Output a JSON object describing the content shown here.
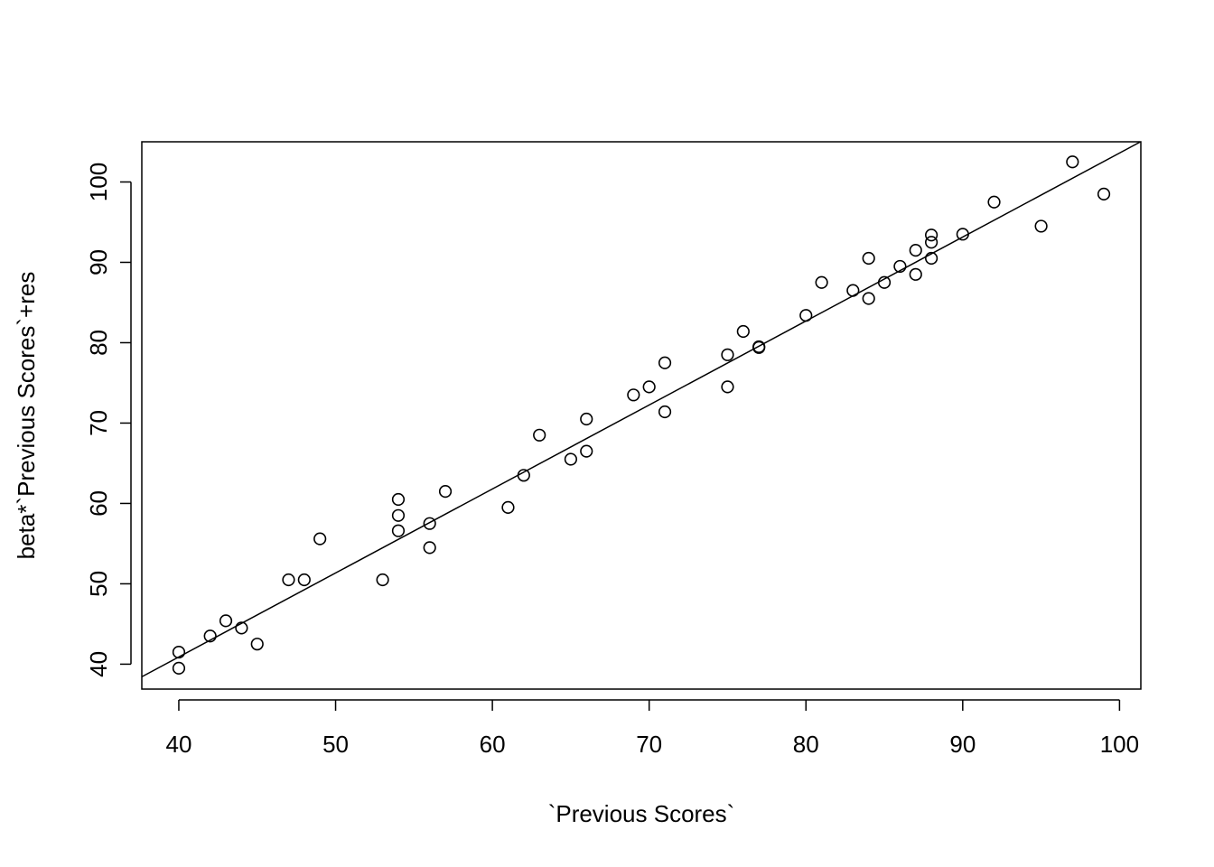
{
  "chart_data": {
    "type": "scatter",
    "title": "",
    "xlabel": "`Previous Scores`",
    "ylabel": "beta*`Previous Scores`+res",
    "xlim": [
      37.64,
      101.36
    ],
    "ylim": [
      36.9,
      105
    ],
    "x_ticks": [
      40,
      50,
      60,
      70,
      80,
      90,
      100
    ],
    "y_ticks": [
      40,
      50,
      60,
      70,
      80,
      90,
      100
    ],
    "grid": false,
    "legend": "none",
    "point_style": "open-circle",
    "points": [
      {
        "x": 40,
        "y": 41.5
      },
      {
        "x": 40,
        "y": 39.5
      },
      {
        "x": 42,
        "y": 43.5
      },
      {
        "x": 43,
        "y": 45.4
      },
      {
        "x": 44,
        "y": 44.5
      },
      {
        "x": 45,
        "y": 42.5
      },
      {
        "x": 47,
        "y": 50.5
      },
      {
        "x": 48,
        "y": 50.5
      },
      {
        "x": 49,
        "y": 55.6
      },
      {
        "x": 53,
        "y": 50.5
      },
      {
        "x": 54,
        "y": 60.5
      },
      {
        "x": 54,
        "y": 58.5
      },
      {
        "x": 54,
        "y": 56.6
      },
      {
        "x": 56,
        "y": 57.5
      },
      {
        "x": 56,
        "y": 54.5
      },
      {
        "x": 57,
        "y": 61.5
      },
      {
        "x": 61,
        "y": 59.5
      },
      {
        "x": 62,
        "y": 63.5
      },
      {
        "x": 63,
        "y": 68.5
      },
      {
        "x": 65,
        "y": 65.5
      },
      {
        "x": 66,
        "y": 70.5
      },
      {
        "x": 66,
        "y": 66.5
      },
      {
        "x": 69,
        "y": 73.5
      },
      {
        "x": 70,
        "y": 74.5
      },
      {
        "x": 71,
        "y": 77.5
      },
      {
        "x": 71,
        "y": 71.4
      },
      {
        "x": 75,
        "y": 78.5
      },
      {
        "x": 75,
        "y": 74.5
      },
      {
        "x": 76,
        "y": 81.4
      },
      {
        "x": 77,
        "y": 79.5
      },
      {
        "x": 77,
        "y": 79.4
      },
      {
        "x": 80,
        "y": 83.4
      },
      {
        "x": 81,
        "y": 87.5
      },
      {
        "x": 83,
        "y": 86.5
      },
      {
        "x": 84,
        "y": 90.5
      },
      {
        "x": 84,
        "y": 85.5
      },
      {
        "x": 85,
        "y": 87.5
      },
      {
        "x": 86,
        "y": 89.5
      },
      {
        "x": 87,
        "y": 91.5
      },
      {
        "x": 87,
        "y": 88.5
      },
      {
        "x": 88,
        "y": 93.4
      },
      {
        "x": 88,
        "y": 92.5
      },
      {
        "x": 88,
        "y": 90.5
      },
      {
        "x": 90,
        "y": 93.5
      },
      {
        "x": 92,
        "y": 97.5
      },
      {
        "x": 95,
        "y": 94.5
      },
      {
        "x": 97,
        "y": 102.5
      },
      {
        "x": 99,
        "y": 98.5
      }
    ],
    "reference_line": {
      "type": "regression",
      "intercept": -0.9,
      "slope": 1.045
    }
  }
}
